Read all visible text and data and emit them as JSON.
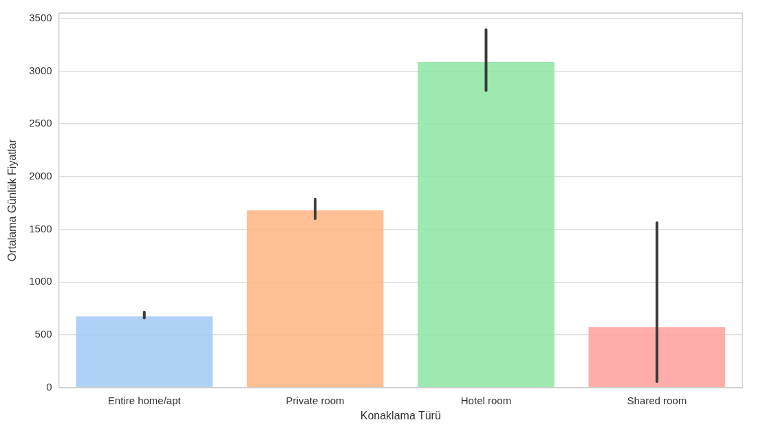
{
  "chart_data": {
    "type": "bar",
    "xlabel": "Konaklama Türü",
    "ylabel": "Ortalama Günlük Fiyatlar",
    "categories": [
      "Entire home/apt",
      "Private room",
      "Hotel room",
      "Shared room"
    ],
    "values": [
      675,
      1680,
      3087,
      572
    ],
    "colors": [
      "#a1c9f4",
      "#ffb482",
      "#8de5a1",
      "#ff9f9b"
    ],
    "errors": [
      [
        660,
        716
      ],
      [
        1601,
        1786
      ],
      [
        2815,
        3392
      ],
      [
        58,
        1563
      ]
    ],
    "ylim": [
      0,
      3550
    ],
    "yticks": [
      0,
      500,
      1000,
      1500,
      2000,
      2500,
      3000,
      3500
    ],
    "grid": "y"
  }
}
